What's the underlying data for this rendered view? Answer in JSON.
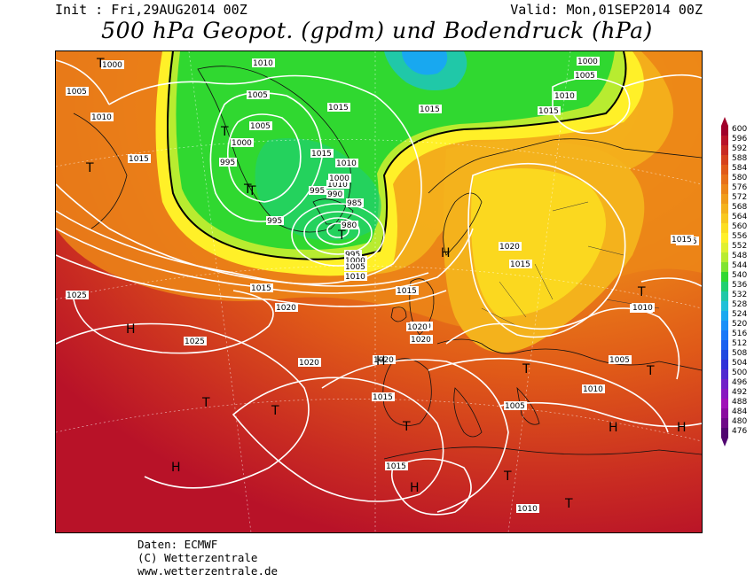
{
  "header": {
    "init": "Init : Fri,29AUG2014 00Z",
    "valid": "Valid: Mon,01SEP2014 00Z",
    "title": "500 hPa Geopot. (gpdm) und Bodendruck (hPa)"
  },
  "footer": {
    "source": "Daten: ECMWF",
    "copyright": "(C) Wetterzentrale",
    "url": "www.wetterzentrale.de"
  },
  "legend": {
    "values": [
      "600",
      "596",
      "592",
      "588",
      "584",
      "580",
      "576",
      "572",
      "568",
      "564",
      "560",
      "556",
      "552",
      "548",
      "544",
      "540",
      "536",
      "532",
      "528",
      "524",
      "520",
      "516",
      "512",
      "508",
      "504",
      "500",
      "496",
      "492",
      "488",
      "484",
      "480",
      "476"
    ],
    "colors": [
      "#a0002a",
      "#b81228",
      "#c82a22",
      "#d6421c",
      "#e05a18",
      "#e77018",
      "#ec8618",
      "#f09c1a",
      "#f4b21c",
      "#f8c81e",
      "#fcde20",
      "#fff028",
      "#e0f030",
      "#b8ec30",
      "#80e430",
      "#30d830",
      "#20d070",
      "#20c8a8",
      "#20c0d8",
      "#18a8f0",
      "#1890f8",
      "#1878f8",
      "#1860f0",
      "#2048e0",
      "#3030d8",
      "#5028d0",
      "#7020c8",
      "#8818c0",
      "#a010b8",
      "#8a0aa0",
      "#6e0888",
      "#500470"
    ]
  },
  "map": {
    "isobar_labels": [
      "1000",
      "1010",
      "1005",
      "1010",
      "1015",
      "1000",
      "1005",
      "1015",
      "1010",
      "1005",
      "1015",
      "1015",
      "1015",
      "1000",
      "995",
      "1010",
      "1010",
      "1005",
      "1000",
      "995",
      "990",
      "985",
      "980",
      "995",
      "995",
      "1000",
      "1005",
      "1010",
      "1015",
      "1015",
      "1020",
      "1025",
      "1025",
      "1020",
      "1020",
      "1020",
      "1015",
      "1015",
      "1020",
      "1010",
      "1020",
      "1015",
      "1010",
      "1005",
      "1005",
      "1010",
      "1015",
      "1020",
      "1010",
      "1015",
      "1010"
    ],
    "pressure_centers": [
      "T",
      "T",
      "T",
      "T",
      "T",
      "T",
      "H",
      "H",
      "H",
      "H",
      "T",
      "T",
      "T",
      "H",
      "T",
      "T",
      "H",
      "H",
      "T",
      "T",
      "T"
    ]
  }
}
